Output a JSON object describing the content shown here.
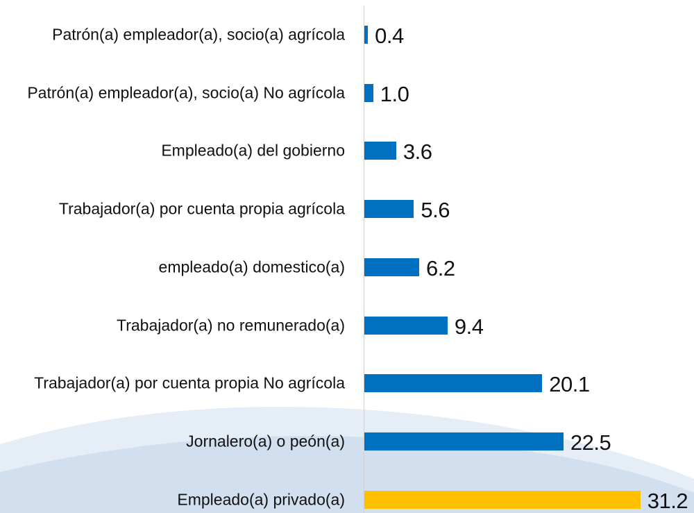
{
  "chart_data": {
    "type": "bar",
    "orientation": "horizontal",
    "categories": [
      "Patrón(a) empleador(a), socio(a) agrícola",
      "Patrón(a) empleador(a), socio(a) No agrícola",
      "Empleado(a) del gobierno",
      "Trabajador(a) por cuenta propia agrícola",
      "empleado(a) domestico(a)",
      "Trabajador(a) no remunerado(a)",
      "Trabajador(a) por cuenta propia No agrícola",
      "Jornalero(a) o peón(a)",
      "Empleado(a) privado(a)"
    ],
    "values": [
      0.4,
      1.0,
      3.6,
      5.6,
      6.2,
      9.4,
      20.1,
      22.5,
      31.2
    ],
    "value_labels": [
      "0.4",
      "1.0",
      "3.6",
      "5.6",
      "6.2",
      "9.4",
      "20.1",
      "22.5",
      "31.2"
    ],
    "colors": [
      "#0070c0",
      "#0070c0",
      "#0070c0",
      "#0070c0",
      "#0070c0",
      "#0070c0",
      "#0070c0",
      "#0070c0",
      "#ffc000"
    ]
  }
}
